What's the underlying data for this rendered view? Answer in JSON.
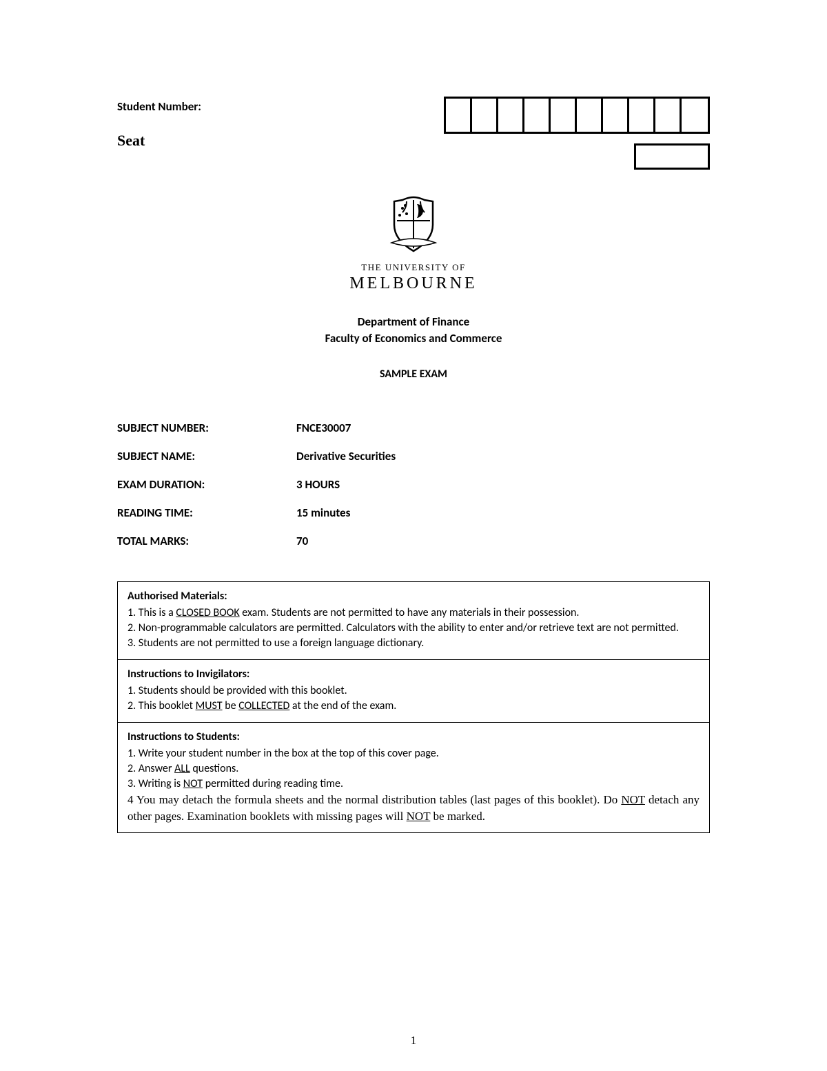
{
  "labels": {
    "student_number": "Student Number:",
    "seat": "Seat"
  },
  "student_number_cells": 10,
  "university": {
    "line1": "THE UNIVERSITY OF",
    "line2": "MELBOURNE"
  },
  "header": {
    "department": "Department of Finance",
    "faculty": "Faculty of Economics and Commerce",
    "exam_type": "SAMPLE EXAM"
  },
  "info": {
    "subject_number": {
      "label": "SUBJECT NUMBER:",
      "value": "FNCE30007"
    },
    "subject_name": {
      "label": "SUBJECT NAME:",
      "value": "Derivative Securities"
    },
    "exam_duration": {
      "label": "EXAM DURATION:",
      "value": "3 HOURS"
    },
    "reading_time": {
      "label": "READING TIME:",
      "value": "15 minutes"
    },
    "total_marks": {
      "label": "TOTAL MARKS:",
      "value": "70"
    }
  },
  "rules": {
    "materials": {
      "heading": "Authorised Materials:",
      "item1_pre": "1. This is a ",
      "item1_u": "CLOSED BOOK",
      "item1_post": " exam. Students are not permitted to have any materials in their possession.",
      "item2": "2. Non-programmable calculators are permitted. Calculators with the ability to enter and/or retrieve text are not permitted.",
      "item3": "3. Students are not permitted to use a foreign language dictionary."
    },
    "invigilators": {
      "heading": "Instructions to Invigilators:",
      "item1": "1. Students should be provided with this booklet.",
      "item2_pre": "2. This booklet ",
      "item2_u1": "MUST",
      "item2_mid": " be ",
      "item2_u2": "COLLECTED",
      "item2_post": " at the end of the exam."
    },
    "students": {
      "heading": "Instructions to Students:",
      "item1": "1. Write your student number in the box at the top of this cover page.",
      "item2_pre": "2. Answer ",
      "item2_u": "ALL",
      "item2_post": " questions.",
      "item3_pre": "3. Writing is ",
      "item3_u": "NOT",
      "item3_post": " permitted during reading time.",
      "item4_pre": "4  You may detach the formula sheets and the normal distribution tables (last pages of this booklet). Do ",
      "item4_u1": "NOT",
      "item4_mid": " detach any other pages. Examination booklets with missing pages will ",
      "item4_u2": "NOT",
      "item4_post": " be marked."
    }
  },
  "page_number": "1"
}
